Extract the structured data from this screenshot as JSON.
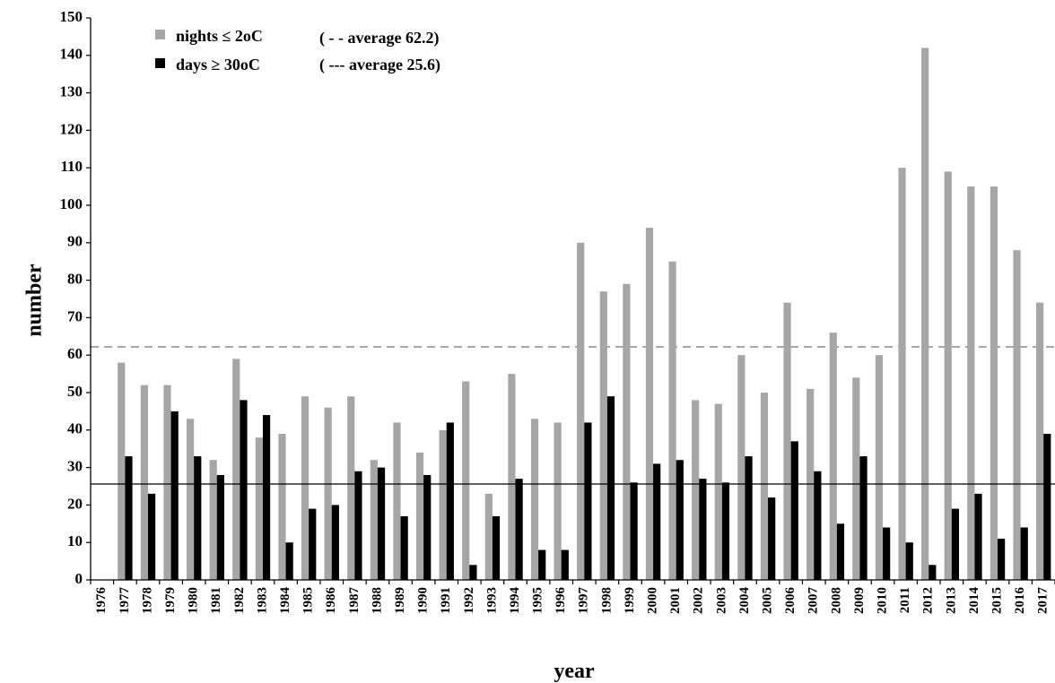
{
  "chart_data": {
    "type": "bar",
    "xlabel": "year",
    "ylabel": "number",
    "ylim": [
      0,
      150
    ],
    "yticks": [
      0,
      10,
      20,
      30,
      40,
      50,
      60,
      70,
      80,
      90,
      100,
      110,
      120,
      130,
      140,
      150
    ],
    "categories": [
      "1976",
      "1977",
      "1978",
      "1979",
      "1980",
      "1981",
      "1982",
      "1983",
      "1984",
      "1985",
      "1986",
      "1987",
      "1988",
      "1989",
      "1990",
      "1991",
      "1992",
      "1993",
      "1994",
      "1995",
      "1996",
      "1997",
      "1998",
      "1999",
      "2000",
      "2001",
      "2002",
      "2003",
      "2004",
      "2005",
      "2006",
      "2007",
      "2008",
      "2009",
      "2010",
      "2011",
      "2012",
      "2013",
      "2014",
      "2015",
      "2016",
      "2017"
    ],
    "series": [
      {
        "name": "nights ≤ 2oC",
        "color": "#a6a6a6",
        "values": [
          null,
          58,
          52,
          52,
          43,
          32,
          59,
          38,
          39,
          49,
          46,
          49,
          32,
          42,
          34,
          40,
          53,
          23,
          55,
          43,
          42,
          90,
          77,
          79,
          94,
          85,
          48,
          47,
          60,
          50,
          74,
          51,
          66,
          54,
          60,
          110,
          142,
          109,
          105,
          105,
          88,
          74
        ]
      },
      {
        "name": "days ≥ 30oC",
        "color": "#000000",
        "values": [
          null,
          33,
          23,
          45,
          33,
          28,
          48,
          44,
          10,
          19,
          20,
          29,
          30,
          17,
          28,
          42,
          4,
          17,
          27,
          8,
          8,
          42,
          49,
          26,
          31,
          32,
          27,
          26,
          33,
          22,
          37,
          29,
          15,
          33,
          14,
          10,
          4,
          19,
          23,
          11,
          14,
          39
        ]
      }
    ],
    "reference_lines": [
      {
        "label": "( - - average 62.2)",
        "value": 62.2,
        "style": "dashed",
        "color": "#a6a6a6"
      },
      {
        "label": "( --- average 25.6)",
        "value": 25.6,
        "style": "solid",
        "color": "#000000"
      }
    ],
    "legend_position": "top-left",
    "grid": false
  }
}
